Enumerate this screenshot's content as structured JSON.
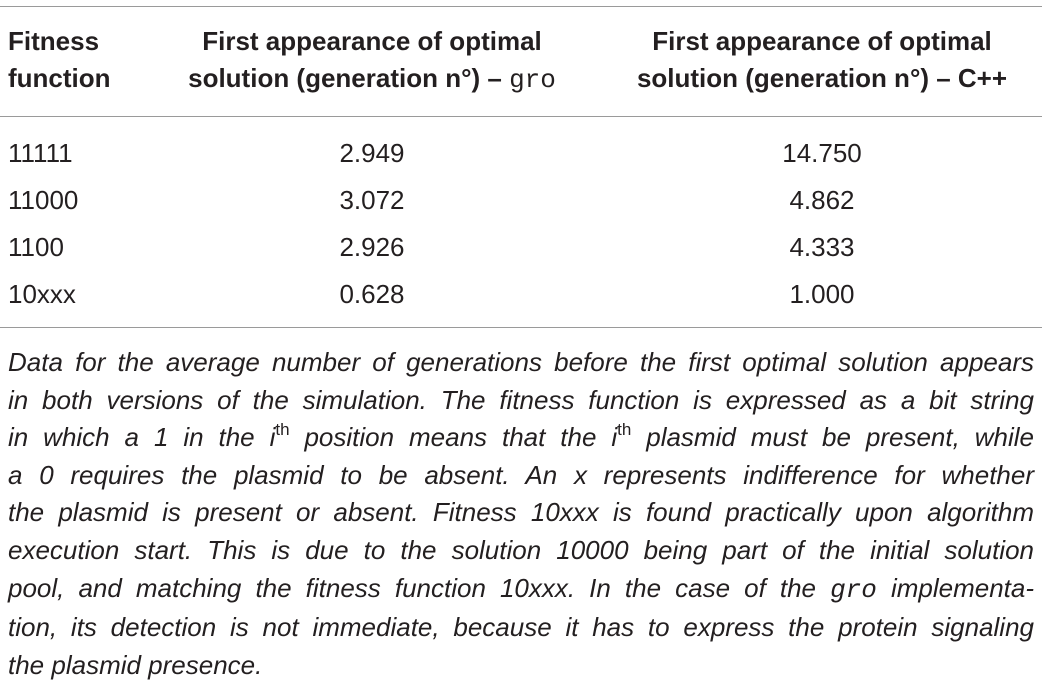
{
  "table": {
    "headers": {
      "col1": {
        "line1": "Fitness",
        "line2": "function"
      },
      "col2": {
        "line1": "First appearance of optimal",
        "line2_pre": "solution (generation n°) – ",
        "line2_code": "gro"
      },
      "col3": {
        "line1": "First appearance of optimal",
        "line2": "solution (generation n°) – C++"
      }
    },
    "rows": [
      {
        "fitness": "11111",
        "gro": "2.949",
        "cpp": "14.750"
      },
      {
        "fitness": "11000",
        "gro": "3.072",
        "cpp": "4.862"
      },
      {
        "fitness": "1100",
        "gro": "2.926",
        "cpp": "4.333"
      },
      {
        "fitness": "10xxx",
        "gro": "0.628",
        "cpp": "1.000"
      }
    ]
  },
  "caption": {
    "l1": "Data for the average number of generations before the first optimal solution appears",
    "l2": "in both versions of the simulation. The fitness function is expressed as a bit string",
    "l3_a": "in which a 1 in the ",
    "l3_i1": "i",
    "l3_sup1": "th",
    "l3_b": " position means that the ",
    "l3_i2": "i",
    "l3_sup2": "th",
    "l3_c": " plasmid must be present, while",
    "l4": "a 0 requires the plasmid to be absent. An x represents indifference for whether",
    "l5": "the plasmid is present or absent. Fitness 10xxx is found practically upon algorithm",
    "l6": "execution start. This is due to the solution 10000 being part of the initial solution",
    "l7_a": "pool, and matching the fitness function 10xxx. In the case of the ",
    "l7_code": "gro",
    "l7_b": " implementa-",
    "l8": "tion, its detection is not immediate, because it has to express the protein signaling",
    "l9": "the plasmid presence."
  }
}
